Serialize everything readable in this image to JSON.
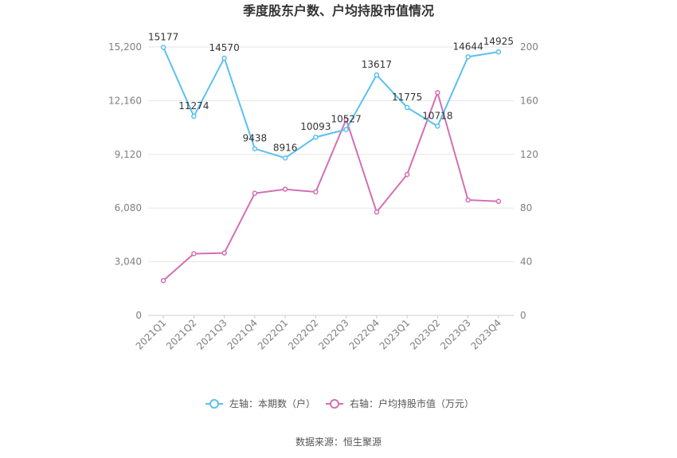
{
  "chart_data": {
    "type": "line",
    "title": "季度股东户数、户均持股市值情况",
    "categories": [
      "2021Q1",
      "2021Q2",
      "2021Q3",
      "2021Q4",
      "2022Q1",
      "2022Q2",
      "2022Q3",
      "2022Q4",
      "2023Q1",
      "2023Q2",
      "2023Q3",
      "2023Q4"
    ],
    "left_axis": {
      "ticks": [
        "0",
        "3,040",
        "6,080",
        "9,120",
        "12,160",
        "15,200"
      ],
      "ylim": [
        0,
        15200
      ]
    },
    "right_axis": {
      "ticks": [
        "0",
        "40",
        "80",
        "120",
        "160",
        "200"
      ],
      "ylim": [
        0,
        200
      ]
    },
    "series": [
      {
        "name": "左轴：本期数（户）",
        "axis": "left",
        "color": "#5bc0f0",
        "values": [
          15177,
          11274,
          14570,
          9438,
          8916,
          10093,
          10527,
          13617,
          11775,
          10718,
          14644,
          14925
        ],
        "labels": [
          "15177",
          "11274",
          "14570",
          "9438",
          "8916",
          "10093",
          "10527",
          "13617",
          "11775",
          "10718",
          "14644",
          "14925"
        ]
      },
      {
        "name": "右轴：户均持股市值（万元）",
        "axis": "right",
        "color": "#d36fb3",
        "values": [
          26,
          46,
          46.5,
          91,
          94,
          92,
          146,
          77,
          105,
          166,
          86,
          85
        ]
      }
    ],
    "grid": true,
    "legend_position": "bottom"
  },
  "source": "数据来源：恒生聚源"
}
